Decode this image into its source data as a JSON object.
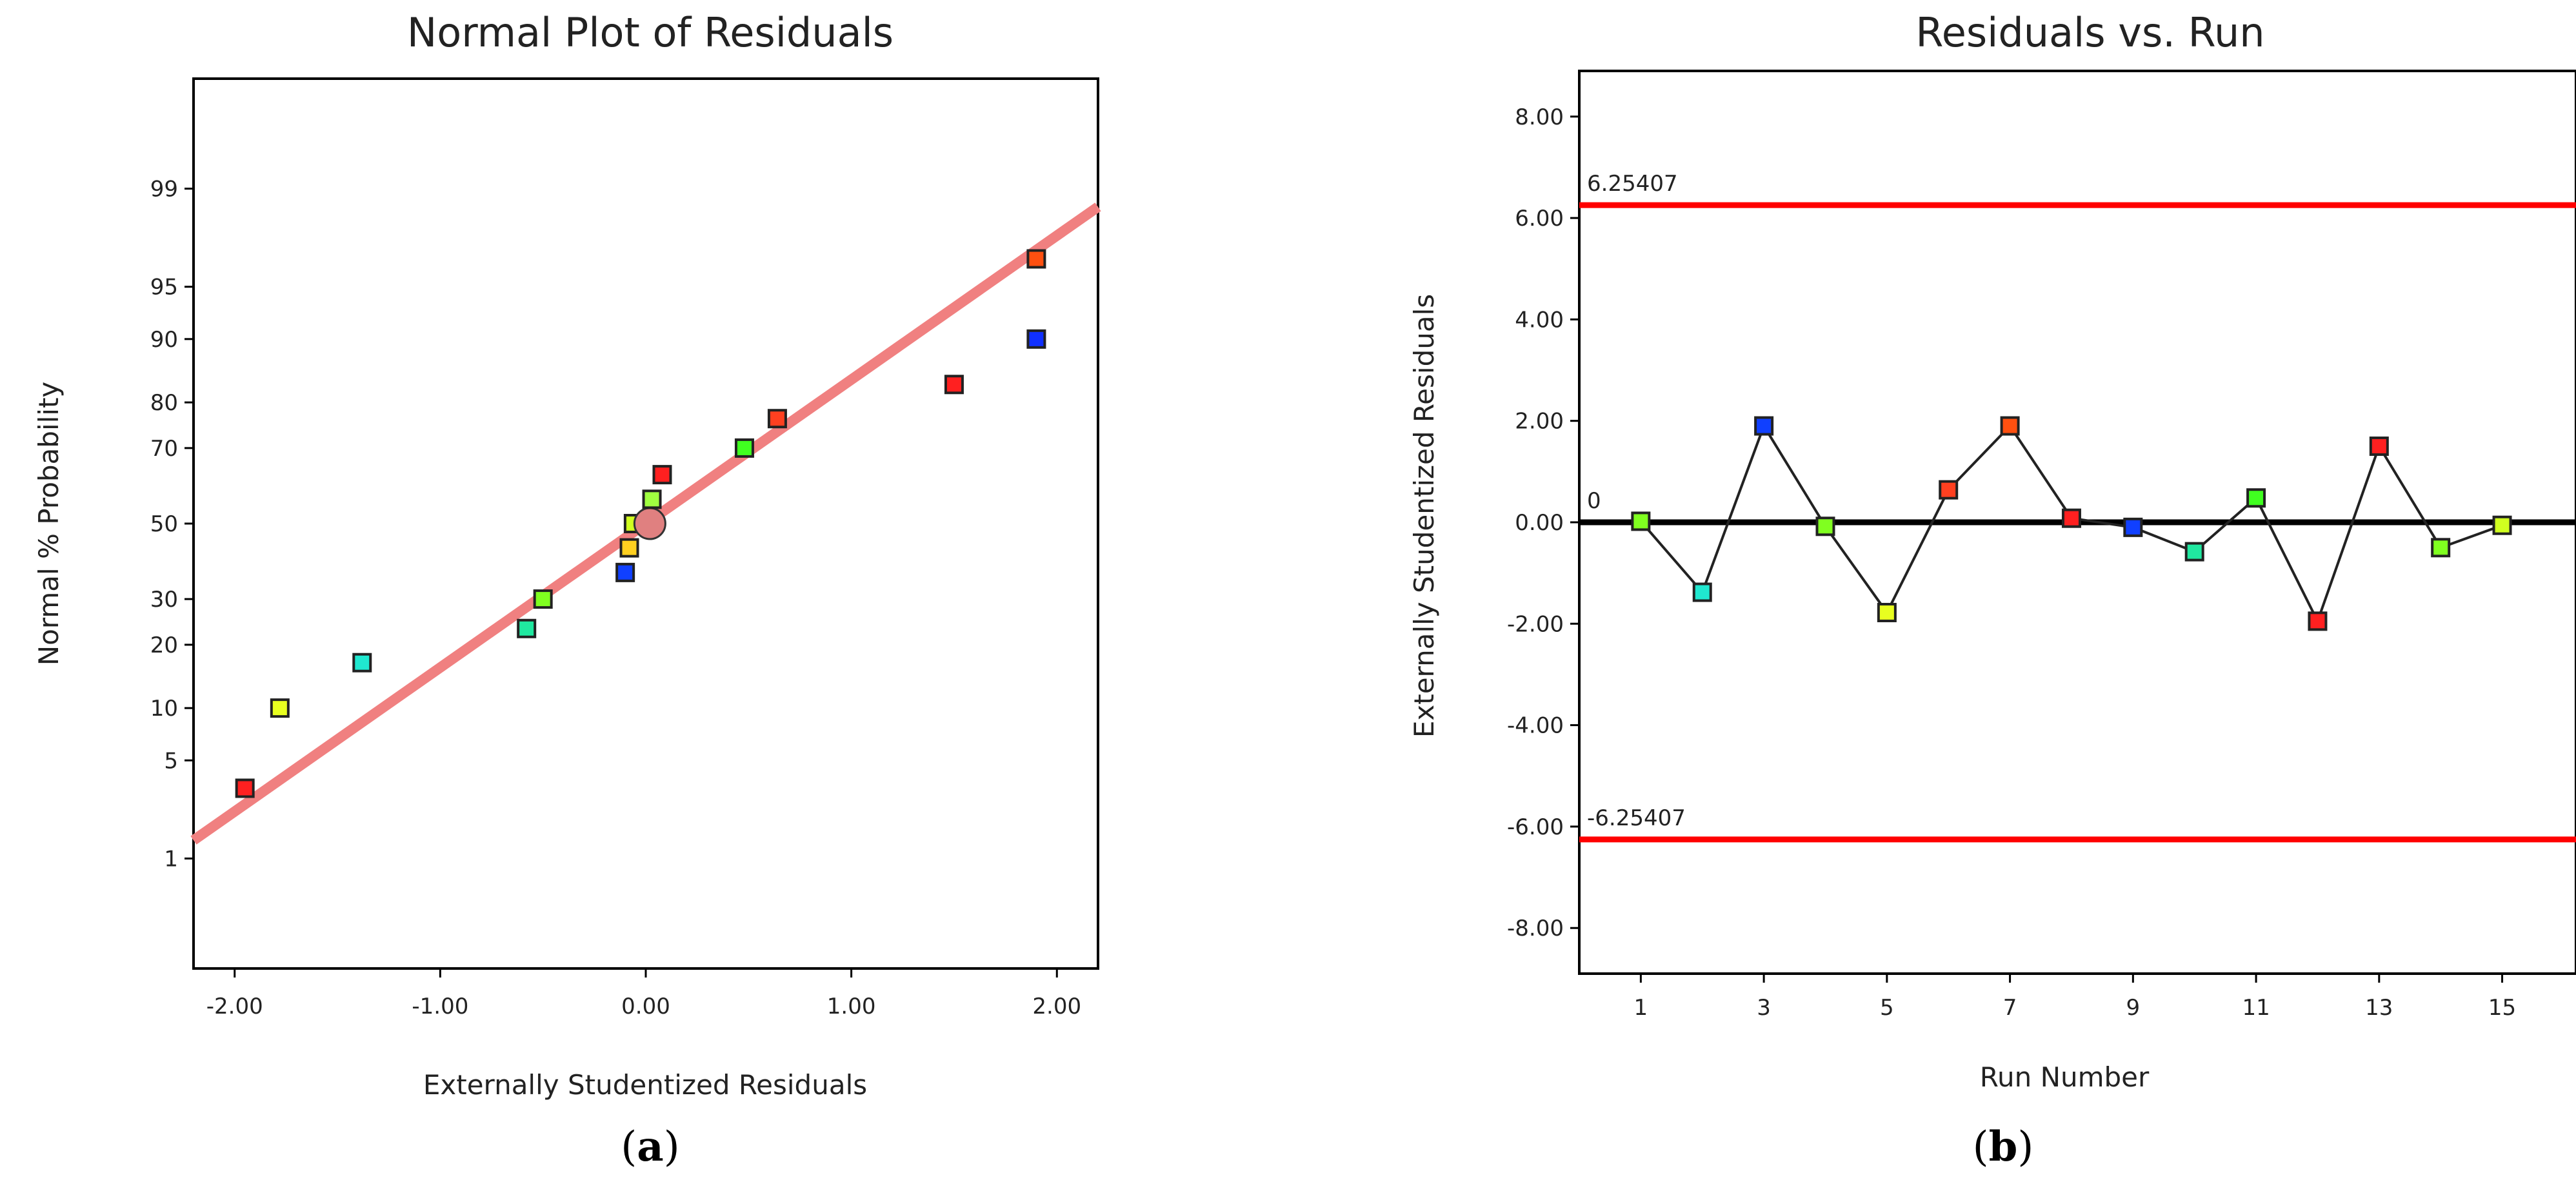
{
  "chart_data": [
    {
      "id": "a",
      "type": "scatter",
      "title": "Normal Plot of Residuals",
      "xlabel": "Externally Studentized Residuals",
      "ylabel": "Normal % Probability",
      "xlim": [
        -2.2,
        2.2
      ],
      "ylim_probability": [
        0.1,
        99.9
      ],
      "x_ticks": [
        -2.0,
        -1.0,
        0.0,
        1.0,
        2.0
      ],
      "x_tick_labels": [
        "-2.00",
        "-1.00",
        "0.00",
        "1.00",
        "2.00"
      ],
      "y_ticks": [
        1,
        5,
        10,
        20,
        30,
        50,
        70,
        80,
        90,
        95,
        99
      ],
      "y_tick_labels": [
        "1",
        "5",
        "10",
        "20",
        "30",
        "50",
        "70",
        "80",
        "90",
        "95",
        "99"
      ],
      "fit_line": {
        "color": "#f08080",
        "slope_pct_per_unit": 1.0
      },
      "points": [
        {
          "x": -1.95,
          "p": 3.3,
          "color": "#ff2020"
        },
        {
          "x": -1.78,
          "p": 10.0,
          "color": "#e8ff20"
        },
        {
          "x": -1.38,
          "p": 16.7,
          "color": "#20e8d0"
        },
        {
          "x": -0.58,
          "p": 23.3,
          "color": "#20e8a0"
        },
        {
          "x": -0.5,
          "p": 30.0,
          "color": "#80ff20"
        },
        {
          "x": -0.1,
          "p": 36.7,
          "color": "#1040ff"
        },
        {
          "x": -0.08,
          "p": 43.3,
          "color": "#ffd020"
        },
        {
          "x": -0.06,
          "p": 50.0,
          "color": "#d0ff20"
        },
        {
          "x": 0.02,
          "p": 50.0,
          "color": "#e08080",
          "marker": "circle"
        },
        {
          "x": 0.03,
          "p": 56.7,
          "color": "#a0ff40"
        },
        {
          "x": 0.08,
          "p": 63.3,
          "color": "#ff2020"
        },
        {
          "x": 0.48,
          "p": 70.0,
          "color": "#40ff20"
        },
        {
          "x": 0.64,
          "p": 76.7,
          "color": "#ff4020"
        },
        {
          "x": 1.5,
          "p": 83.3,
          "color": "#ff2020"
        },
        {
          "x": 1.9,
          "p": 90.0,
          "color": "#1030ff"
        },
        {
          "x": 1.9,
          "p": 96.7,
          "color": "#ff5010"
        }
      ],
      "caption": "a"
    },
    {
      "id": "b",
      "type": "line",
      "title": "Residuals vs. Run",
      "xlabel": "Run Number",
      "ylabel": "Externally Studentized Residuals",
      "xlim": [
        0,
        16.2
      ],
      "ylim": [
        -8.9,
        8.9
      ],
      "x_ticks": [
        1,
        3,
        5,
        7,
        9,
        11,
        13,
        15
      ],
      "x_tick_labels": [
        "1",
        "3",
        "5",
        "7",
        "9",
        "11",
        "13",
        "15"
      ],
      "y_ticks": [
        -8,
        -6,
        -4,
        -2,
        0,
        2,
        4,
        6,
        8
      ],
      "y_tick_labels": [
        "-8.00",
        "-6.00",
        "-4.00",
        "-2.00",
        "0.00",
        "2.00",
        "4.00",
        "6.00",
        "8.00"
      ],
      "upper_limit": {
        "value": 6.25407,
        "label": "6.25407",
        "color": "#ff0000"
      },
      "lower_limit": {
        "value": -6.25407,
        "label": "-6.25407",
        "color": "#ff0000"
      },
      "zero_line": {
        "value": 0,
        "label": "0",
        "color": "#000000"
      },
      "points": [
        {
          "run": 1,
          "y": 0.02,
          "color": "#80ff20"
        },
        {
          "run": 2,
          "y": -1.38,
          "color": "#20e8d0"
        },
        {
          "run": 3,
          "y": 1.9,
          "color": "#1040ff"
        },
        {
          "run": 4,
          "y": -0.08,
          "color": "#80ff20"
        },
        {
          "run": 5,
          "y": -1.78,
          "color": "#e8ff20"
        },
        {
          "run": 6,
          "y": 0.64,
          "color": "#ff4020"
        },
        {
          "run": 7,
          "y": 1.9,
          "color": "#ff5010"
        },
        {
          "run": 8,
          "y": 0.08,
          "color": "#ff2020"
        },
        {
          "run": 9,
          "y": -0.1,
          "color": "#1040ff"
        },
        {
          "run": 10,
          "y": -0.58,
          "color": "#20e8a0"
        },
        {
          "run": 11,
          "y": 0.48,
          "color": "#40ff20"
        },
        {
          "run": 12,
          "y": -1.95,
          "color": "#ff2020"
        },
        {
          "run": 13,
          "y": 1.5,
          "color": "#ff2020"
        },
        {
          "run": 14,
          "y": -0.5,
          "color": "#80ff20"
        },
        {
          "run": 15,
          "y": -0.06,
          "color": "#d0ff20"
        }
      ],
      "caption": "b"
    }
  ]
}
